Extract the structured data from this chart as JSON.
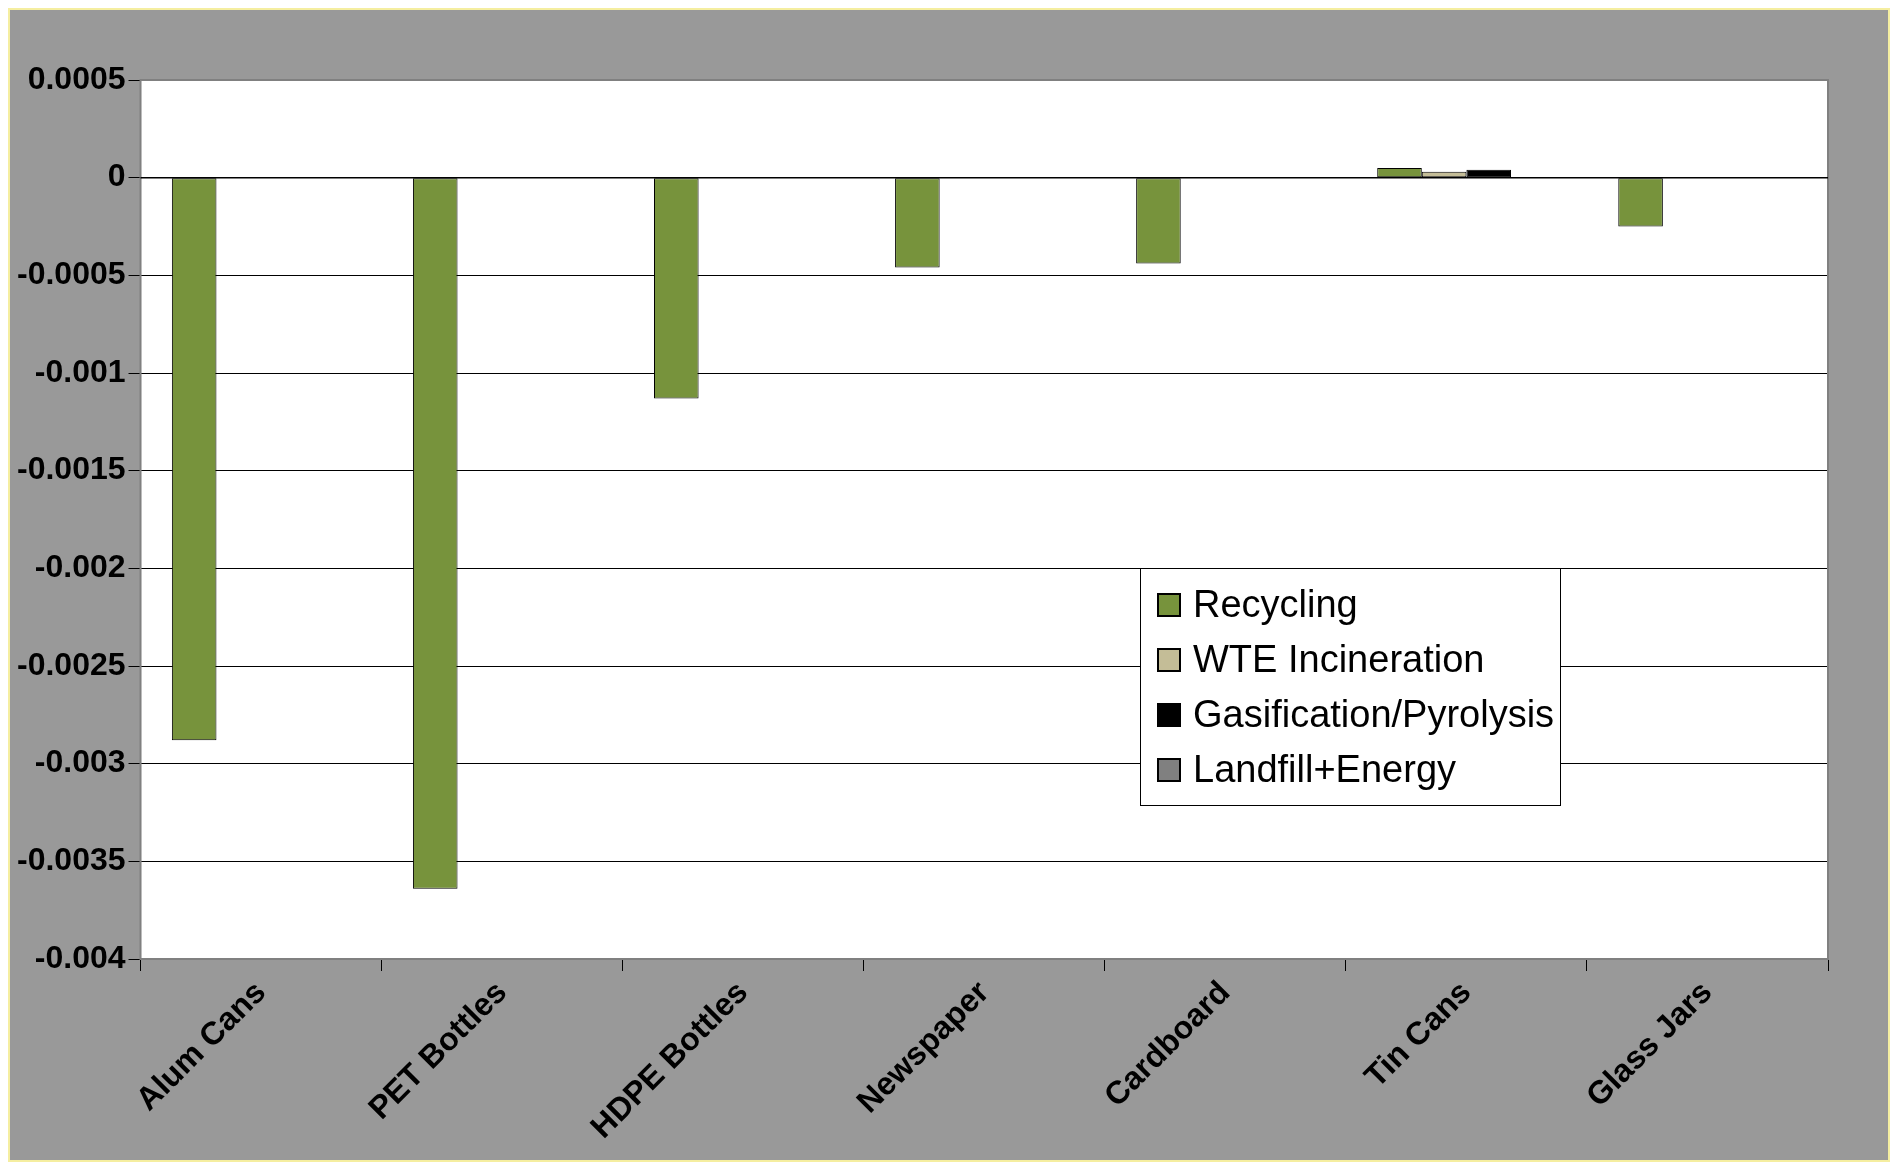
{
  "chart_data": {
    "type": "bar",
    "categories": [
      "Alum Cans",
      "PET Bottles",
      "HDPE Bottles",
      "Newspaper",
      "Cardboard",
      "Tin Cans",
      "Glass Jars"
    ],
    "series": [
      {
        "name": "Recycling",
        "color": "#77933c",
        "values": [
          -0.00288,
          -0.00364,
          -0.00113,
          -0.00046,
          -0.00044,
          5e-05,
          -0.00025
        ]
      },
      {
        "name": "WTE Incineration",
        "color": "#c4bd97",
        "values": [
          null,
          null,
          null,
          null,
          null,
          3e-05,
          null
        ]
      },
      {
        "name": "Gasification/Pyrolysis",
        "color": "#000000",
        "values": [
          null,
          null,
          null,
          null,
          null,
          4e-05,
          null
        ]
      },
      {
        "name": "Landfill+Energy",
        "color": "#808080",
        "values": [
          null,
          null,
          null,
          null,
          null,
          null,
          null
        ]
      }
    ],
    "ylim": [
      -0.004,
      0.0005
    ],
    "yticks": [
      0.0005,
      0,
      -0.0005,
      -0.001,
      -0.0015,
      -0.002,
      -0.0025,
      -0.003,
      -0.0035,
      -0.004
    ],
    "grid": "y",
    "legend": "right"
  }
}
